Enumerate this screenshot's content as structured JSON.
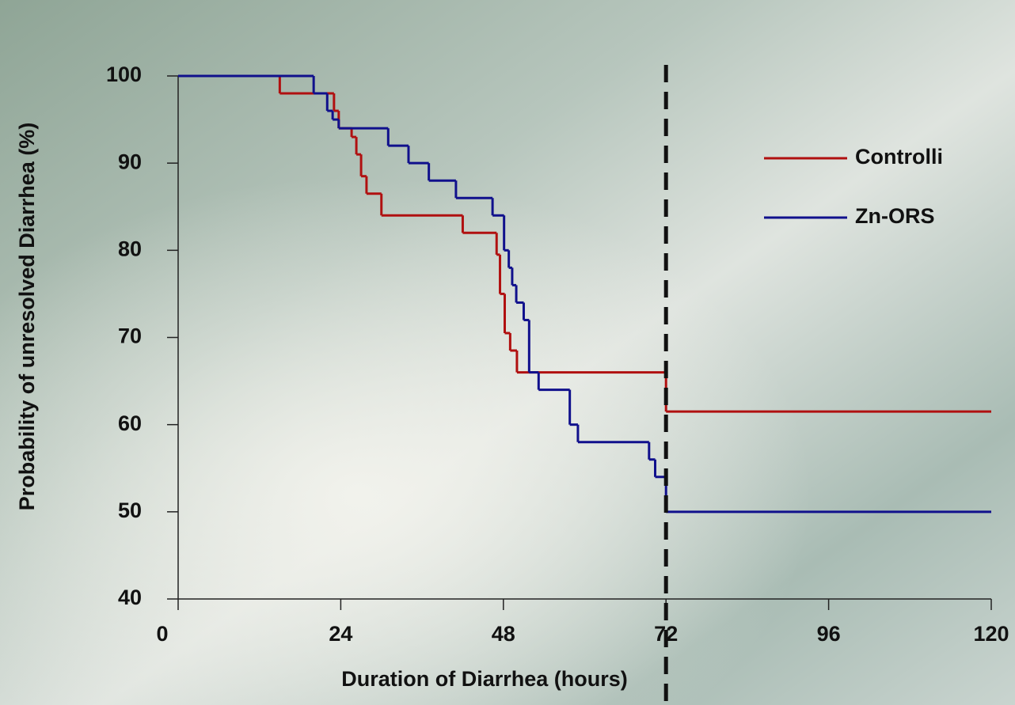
{
  "chart_data": {
    "type": "step",
    "x_label": "Duration of Diarrhea (hours)",
    "y_label": "Probability of unresolved Diarrhea (%)",
    "xlim": [
      0,
      120
    ],
    "xticks": [
      0,
      24,
      48,
      72,
      96,
      120
    ],
    "ylim": [
      40,
      100
    ],
    "yticks": [
      40,
      50,
      60,
      70,
      80,
      90,
      100
    ],
    "vline": 72,
    "series": [
      {
        "name": "Controlli",
        "color": "#b01010",
        "x": [
          0,
          15,
          23,
          23.7,
          25.6,
          26.3,
          27,
          27.8,
          30,
          42,
          47,
          47.5,
          48.2,
          49,
          50,
          72
        ],
        "values": [
          100,
          98,
          96,
          94,
          93,
          91,
          88.5,
          86.5,
          84,
          82,
          79.5,
          75,
          70.5,
          68.5,
          66,
          61.5
        ]
      },
      {
        "name": "Zn-ORS",
        "color": "#10108c",
        "x": [
          0,
          20,
          22,
          22.8,
          23.7,
          31,
          34,
          37,
          41,
          46.4,
          48.1,
          48.8,
          49.3,
          49.9,
          51,
          51.8,
          53.2,
          57.8,
          59,
          69.5,
          70.4,
          72
        ],
        "values": [
          100,
          98,
          96,
          95,
          94,
          92,
          90,
          88,
          86,
          84,
          80,
          78,
          76,
          74,
          72,
          66,
          64,
          60,
          58,
          56,
          54,
          50
        ]
      }
    ]
  }
}
